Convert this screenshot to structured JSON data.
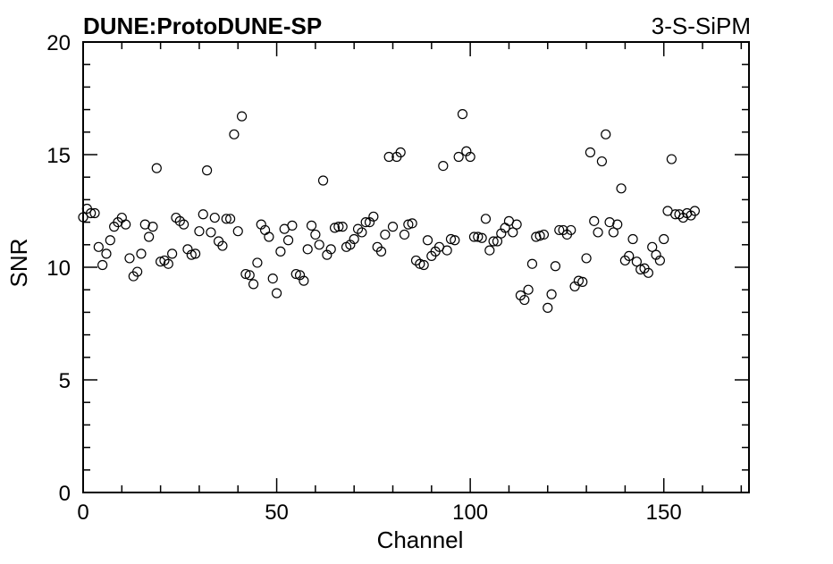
{
  "chart_data": {
    "type": "scatter",
    "title": "DUNE:ProtoDUNE-SP",
    "subtitle": "3-S-SiPM",
    "x_label": "Channel",
    "y_label": "SNR",
    "xlim": [
      0,
      172
    ],
    "ylim": [
      0,
      20
    ],
    "xticks": [
      0,
      50,
      100,
      150
    ],
    "yticks": [
      0,
      5,
      10,
      15,
      20
    ],
    "xminorticks": [
      10,
      20,
      30,
      40,
      60,
      70,
      80,
      90,
      110,
      120,
      130,
      140,
      160,
      170
    ],
    "yminorticks": [
      1,
      2,
      3,
      4,
      6,
      7,
      8,
      9,
      11,
      12,
      13,
      14,
      16,
      17,
      18,
      19
    ],
    "marker": "open-circle",
    "color": "#000000",
    "x": [
      0,
      1,
      2,
      3,
      4,
      5,
      6,
      7,
      8,
      9,
      10,
      11,
      12,
      13,
      14,
      15,
      16,
      17,
      18,
      19,
      20,
      21,
      22,
      23,
      24,
      25,
      26,
      27,
      28,
      29,
      30,
      31,
      32,
      33,
      34,
      35,
      36,
      37,
      38,
      39,
      40,
      41,
      42,
      43,
      44,
      45,
      46,
      47,
      48,
      49,
      50,
      51,
      52,
      53,
      54,
      55,
      56,
      57,
      58,
      59,
      60,
      61,
      62,
      63,
      64,
      65,
      66,
      67,
      68,
      69,
      70,
      71,
      72,
      73,
      74,
      75,
      76,
      77,
      78,
      79,
      80,
      81,
      82,
      83,
      84,
      85,
      86,
      87,
      88,
      89,
      90,
      91,
      92,
      93,
      94,
      95,
      96,
      97,
      98,
      99,
      100,
      101,
      102,
      103,
      104,
      105,
      106,
      107,
      108,
      109,
      110,
      111,
      112,
      113,
      114,
      115,
      116,
      117,
      118,
      119,
      120,
      121,
      122,
      123,
      124,
      125,
      126,
      127,
      128,
      129,
      130,
      131,
      132,
      133,
      134,
      135,
      136,
      137,
      138,
      139,
      140,
      141,
      142,
      143,
      144,
      145,
      146,
      147,
      148,
      149,
      150,
      151,
      152,
      153,
      154,
      155,
      156,
      157,
      158
    ],
    "values": [
      12.22,
      12.6,
      12.4,
      12.4,
      10.9,
      10.1,
      10.6,
      11.2,
      11.8,
      12.0,
      12.2,
      11.9,
      10.4,
      9.6,
      9.8,
      10.6,
      11.9,
      11.35,
      11.8,
      14.4,
      10.25,
      10.3,
      10.15,
      10.6,
      12.2,
      12.05,
      11.9,
      10.8,
      10.55,
      10.6,
      11.6,
      12.35,
      14.3,
      11.55,
      12.2,
      11.15,
      10.95,
      12.15,
      12.15,
      15.9,
      11.6,
      16.7,
      9.7,
      9.65,
      9.25,
      10.2,
      11.9,
      11.65,
      11.35,
      9.5,
      8.85,
      10.7,
      11.7,
      11.2,
      11.85,
      9.7,
      9.65,
      9.4,
      10.8,
      11.85,
      11.45,
      11.0,
      13.85,
      10.55,
      10.8,
      11.75,
      11.8,
      11.8,
      10.9,
      11.0,
      11.25,
      11.7,
      11.55,
      12.0,
      12.0,
      12.25,
      10.9,
      10.7,
      11.45,
      14.9,
      11.8,
      14.9,
      15.1,
      11.45,
      11.9,
      11.95,
      10.3,
      10.15,
      10.1,
      11.2,
      10.5,
      10.7,
      10.9,
      14.5,
      10.75,
      11.25,
      11.2,
      14.9,
      16.8,
      15.15,
      14.9,
      11.35,
      11.35,
      11.3,
      12.15,
      10.75,
      11.15,
      11.15,
      11.5,
      11.75,
      12.05,
      11.55,
      11.9,
      8.75,
      8.55,
      9.0,
      10.15,
      11.35,
      11.4,
      11.45,
      8.2,
      8.8,
      10.05,
      11.65,
      11.65,
      11.45,
      11.65,
      9.15,
      9.4,
      9.35,
      10.4,
      15.1,
      12.05,
      11.55,
      14.7,
      15.9,
      12.0,
      11.55,
      11.9,
      13.5,
      10.3,
      10.5,
      11.25,
      10.25,
      9.9,
      9.95,
      9.75,
      10.9,
      10.55,
      10.3,
      11.25,
      12.5,
      14.8,
      12.35,
      12.35,
      12.2,
      12.4,
      12.3,
      12.5
    ]
  }
}
